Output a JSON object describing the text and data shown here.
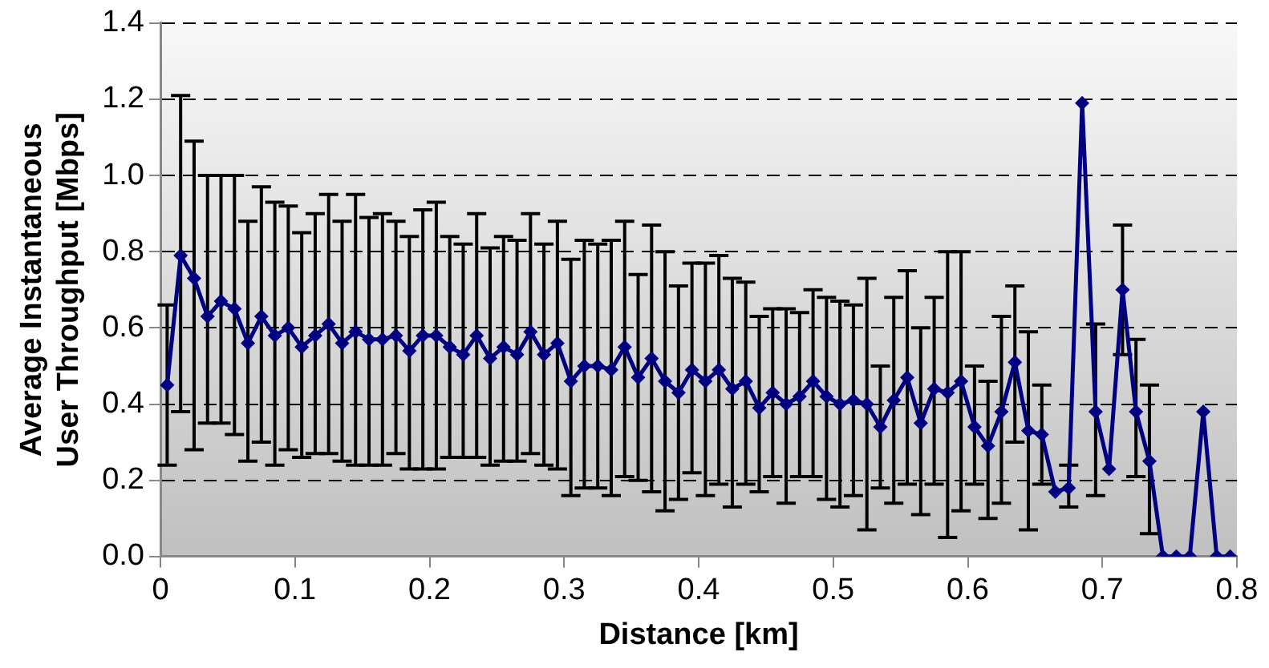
{
  "chart_data": {
    "type": "line",
    "xlabel": "Distance [km]",
    "ylabel": "Average Instantaneous User Throughput [Mbps]",
    "x": [
      0.005,
      0.015,
      0.025,
      0.035,
      0.045,
      0.055,
      0.065,
      0.075,
      0.085,
      0.095,
      0.105,
      0.115,
      0.125,
      0.135,
      0.145,
      0.155,
      0.165,
      0.175,
      0.185,
      0.195,
      0.205,
      0.215,
      0.225,
      0.235,
      0.245,
      0.255,
      0.265,
      0.275,
      0.285,
      0.295,
      0.305,
      0.315,
      0.325,
      0.335,
      0.345,
      0.355,
      0.365,
      0.375,
      0.385,
      0.395,
      0.405,
      0.415,
      0.425,
      0.435,
      0.445,
      0.455,
      0.465,
      0.475,
      0.485,
      0.495,
      0.505,
      0.515,
      0.525,
      0.535,
      0.545,
      0.555,
      0.565,
      0.575,
      0.585,
      0.595,
      0.605,
      0.615,
      0.625,
      0.635,
      0.645,
      0.655,
      0.665,
      0.675,
      0.685,
      0.695,
      0.705,
      0.715,
      0.725,
      0.735,
      0.745,
      0.755,
      0.765,
      0.775,
      0.785,
      0.795
    ],
    "series": [
      {
        "color": "#000080",
        "values": [
          0.45,
          0.79,
          0.73,
          0.63,
          0.67,
          0.65,
          0.56,
          0.63,
          0.58,
          0.6,
          0.55,
          0.58,
          0.61,
          0.56,
          0.59,
          0.57,
          0.57,
          0.58,
          0.54,
          0.58,
          0.58,
          0.55,
          0.53,
          0.58,
          0.52,
          0.55,
          0.53,
          0.59,
          0.53,
          0.56,
          0.46,
          0.5,
          0.5,
          0.49,
          0.55,
          0.47,
          0.52,
          0.46,
          0.43,
          0.49,
          0.46,
          0.49,
          0.44,
          0.46,
          0.39,
          0.43,
          0.4,
          0.42,
          0.46,
          0.42,
          0.4,
          0.41,
          0.4,
          0.34,
          0.41,
          0.47,
          0.35,
          0.44,
          0.43,
          0.46,
          0.34,
          0.29,
          0.38,
          0.51,
          0.33,
          0.32,
          0.17,
          0.18,
          1.19,
          0.38,
          0.23,
          0.7,
          0.38,
          0.25,
          0,
          0,
          0,
          0.38,
          0,
          0
        ],
        "errors": [
          [
            0.24,
            0.66
          ],
          [
            0.38,
            1.21
          ],
          [
            0.28,
            1.09
          ],
          [
            0.35,
            1.0
          ],
          [
            0.35,
            1.0
          ],
          [
            0.32,
            1.0
          ],
          [
            0.25,
            0.88
          ],
          [
            0.3,
            0.97
          ],
          [
            0.24,
            0.93
          ],
          [
            0.28,
            0.92
          ],
          [
            0.26,
            0.85
          ],
          [
            0.27,
            0.9
          ],
          [
            0.27,
            0.95
          ],
          [
            0.25,
            0.88
          ],
          [
            0.24,
            0.95
          ],
          [
            0.24,
            0.89
          ],
          [
            0.24,
            0.9
          ],
          [
            0.27,
            0.88
          ],
          [
            0.23,
            0.84
          ],
          [
            0.23,
            0.91
          ],
          [
            0.23,
            0.93
          ],
          [
            0.26,
            0.84
          ],
          [
            0.26,
            0.82
          ],
          [
            0.26,
            0.9
          ],
          [
            0.24,
            0.81
          ],
          [
            0.25,
            0.84
          ],
          [
            0.25,
            0.83
          ],
          [
            0.27,
            0.9
          ],
          [
            0.24,
            0.82
          ],
          [
            0.23,
            0.88
          ],
          [
            0.16,
            0.78
          ],
          [
            0.18,
            0.83
          ],
          [
            0.18,
            0.82
          ],
          [
            0.16,
            0.83
          ],
          [
            0.21,
            0.88
          ],
          [
            0.2,
            0.74
          ],
          [
            0.17,
            0.87
          ],
          [
            0.12,
            0.8
          ],
          [
            0.15,
            0.71
          ],
          [
            0.22,
            0.77
          ],
          [
            0.16,
            0.77
          ],
          [
            0.19,
            0.79
          ],
          [
            0.13,
            0.73
          ],
          [
            0.19,
            0.72
          ],
          [
            0.17,
            0.63
          ],
          [
            0.21,
            0.65
          ],
          [
            0.14,
            0.65
          ],
          [
            0.21,
            0.64
          ],
          [
            0.21,
            0.7
          ],
          [
            0.15,
            0.68
          ],
          [
            0.13,
            0.67
          ],
          [
            0.16,
            0.66
          ],
          [
            0.07,
            0.73
          ],
          [
            0.18,
            0.5
          ],
          [
            0.14,
            0.68
          ],
          [
            0.19,
            0.75
          ],
          [
            0.11,
            0.6
          ],
          [
            0.19,
            0.68
          ],
          [
            0.05,
            0.8
          ],
          [
            0.12,
            0.8
          ],
          [
            0.19,
            0.5
          ],
          [
            0.1,
            0.46
          ],
          [
            0.14,
            0.63
          ],
          [
            0.3,
            0.71
          ],
          [
            0.07,
            0.59
          ],
          [
            0.19,
            0.45
          ],
          null,
          [
            0.13,
            0.24
          ],
          null,
          [
            0.16,
            0.61
          ],
          null,
          [
            0.53,
            0.87
          ],
          [
            0.21,
            0.57
          ],
          [
            0.06,
            0.45
          ],
          null,
          null,
          null,
          null,
          null,
          null
        ]
      }
    ],
    "xlim": [
      0,
      0.8
    ],
    "xticks": [
      0,
      0.1,
      0.2,
      0.3,
      0.4,
      0.5,
      0.6,
      0.7,
      0.8
    ],
    "ylim": [
      0,
      1.4
    ],
    "yticks": [
      {
        "value": 0,
        "label": "0.0"
      },
      {
        "value": 0.2,
        "label": "0.2"
      },
      {
        "value": 0.4,
        "label": "0.4"
      },
      {
        "value": 0.6,
        "label": "0.6"
      },
      {
        "value": 0.8,
        "label": "0.8"
      },
      {
        "value": 1,
        "label": "1.0"
      },
      {
        "value": 1.2,
        "label": "1.2"
      },
      {
        "value": 1.4,
        "label": "1.4"
      }
    ],
    "grid": "y",
    "legend": false,
    "marker": "diamond",
    "line_style": "solid"
  }
}
